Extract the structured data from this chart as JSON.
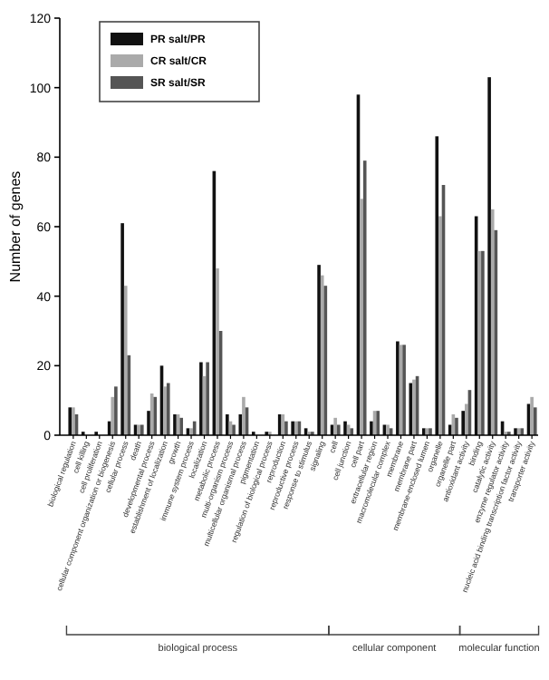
{
  "chart_data": {
    "type": "bar",
    "ylabel": "Number of genes",
    "categories": [
      "biological regulation",
      "cell killing",
      "cell proliferation",
      "cellular component organization or biogenesis",
      "cellular process",
      "death",
      "developmental process",
      "establishment of localization",
      "growth",
      "immune system process",
      "localization",
      "metabolic process",
      "multi-organism process",
      "multicellular organismal process",
      "pigmentation",
      "regulation of biological process",
      "reproduction",
      "reproductive process",
      "response to stimulus",
      "signaling",
      "cell",
      "cell junction",
      "cell part",
      "extracellular region",
      "macromolecular complex",
      "membrane",
      "membrane part",
      "membrane-enclosed lumen",
      "organelle",
      "organelle part",
      "antioxidant activity",
      "binding",
      "catalytic activity",
      "enzyme regulator activity",
      "nucleic acid binding transcription factor activity",
      "transporter activity"
    ],
    "series": [
      {
        "name": "PR salt/PR",
        "color": "#111111",
        "values": [
          8,
          1,
          1,
          4,
          61,
          3,
          7,
          20,
          6,
          2,
          21,
          76,
          6,
          6,
          1,
          1,
          6,
          4,
          2,
          49,
          3,
          4,
          98,
          4,
          3,
          27,
          15,
          2,
          86,
          3,
          7,
          63,
          103,
          4,
          2,
          9
        ]
      },
      {
        "name": "CR salt/CR",
        "color": "#aaaaaa",
        "values": [
          8,
          0,
          0,
          11,
          43,
          3,
          12,
          14,
          6,
          2,
          17,
          48,
          4,
          11,
          0,
          1,
          6,
          4,
          1,
          46,
          5,
          3,
          68,
          7,
          3,
          26,
          16,
          2,
          63,
          6,
          9,
          53,
          65,
          1,
          2,
          11
        ]
      },
      {
        "name": "SR salt/SR",
        "color": "#555555",
        "values": [
          6,
          0,
          0,
          14,
          23,
          3,
          11,
          15,
          5,
          4,
          21,
          30,
          3,
          8,
          0,
          0,
          4,
          4,
          1,
          43,
          3,
          2,
          79,
          7,
          2,
          26,
          17,
          2,
          72,
          5,
          13,
          53,
          59,
          1,
          2,
          8
        ]
      }
    ],
    "ylim": [
      0,
      120
    ],
    "yticks": [
      0,
      20,
      40,
      60,
      80,
      100,
      120
    ],
    "legend": "top left",
    "annotations": [
      "biological process",
      "cellular component",
      "molecular function"
    ]
  }
}
